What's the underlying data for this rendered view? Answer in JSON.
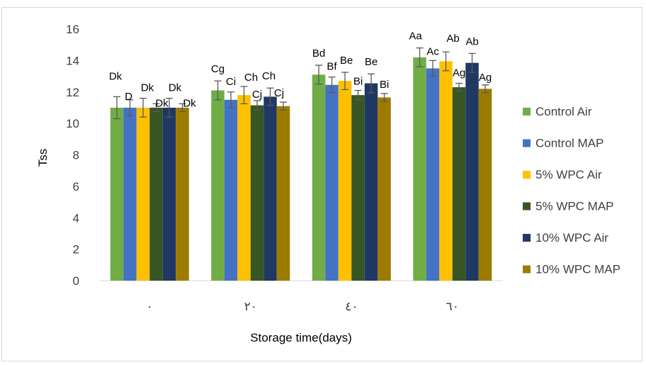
{
  "chart_data": {
    "type": "bar",
    "title": "",
    "xlabel": "Storage time(days)",
    "ylabel": "Tss",
    "ylim": [
      0,
      16
    ],
    "yticks": [
      "0",
      "2",
      "4",
      "6",
      "8",
      "10",
      "12",
      "14",
      "16"
    ],
    "categories": [
      "٠",
      "٢٠",
      "٤٠",
      "٦٠"
    ],
    "grid": "none",
    "legend_position": "right",
    "series": [
      {
        "name": "Control Air",
        "color": "#70AD47",
        "values": [
          11.0,
          12.1,
          13.1,
          14.2
        ],
        "errors": [
          0.7,
          0.6,
          0.6,
          0.6
        ],
        "labels": [
          "Dk",
          "Cg",
          "Bd",
          "Aa"
        ]
      },
      {
        "name": "Control MAP",
        "color": "#4472C4",
        "values": [
          11.0,
          11.5,
          12.45,
          13.5
        ],
        "errors": [
          0.5,
          0.5,
          0.5,
          0.5
        ],
        "labels": [
          "D",
          "Ci",
          "Bf",
          "Ac"
        ]
      },
      {
        "name": "5% WPC Air",
        "color": "#FFC000",
        "values": [
          11.0,
          11.8,
          12.7,
          13.95
        ],
        "errors": [
          0.6,
          0.55,
          0.55,
          0.6
        ],
        "labels": [
          "Dk",
          "Ch",
          "Be",
          "Ab"
        ]
      },
      {
        "name": "5% WPC MAP",
        "color": "#375623",
        "values": [
          11.0,
          11.15,
          11.8,
          12.3
        ],
        "errors": [
          0.25,
          0.3,
          0.3,
          0.25
        ],
        "labels": [
          "Dk",
          "Cj",
          "Bi",
          "Ag"
        ]
      },
      {
        "name": "10% WPC Air",
        "color": "#203864",
        "values": [
          11.0,
          11.7,
          12.55,
          13.85
        ],
        "errors": [
          0.6,
          0.55,
          0.6,
          0.6
        ],
        "labels": [
          "Dk",
          "Ch",
          "Be",
          "Ab"
        ]
      },
      {
        "name": "10% WPC MAP",
        "color": "#9C7B00",
        "values": [
          11.0,
          11.1,
          11.65,
          12.2
        ],
        "errors": [
          0.25,
          0.25,
          0.25,
          0.25
        ],
        "labels": [
          "Dk",
          "Cj",
          "Bi",
          "Ag"
        ]
      }
    ]
  }
}
